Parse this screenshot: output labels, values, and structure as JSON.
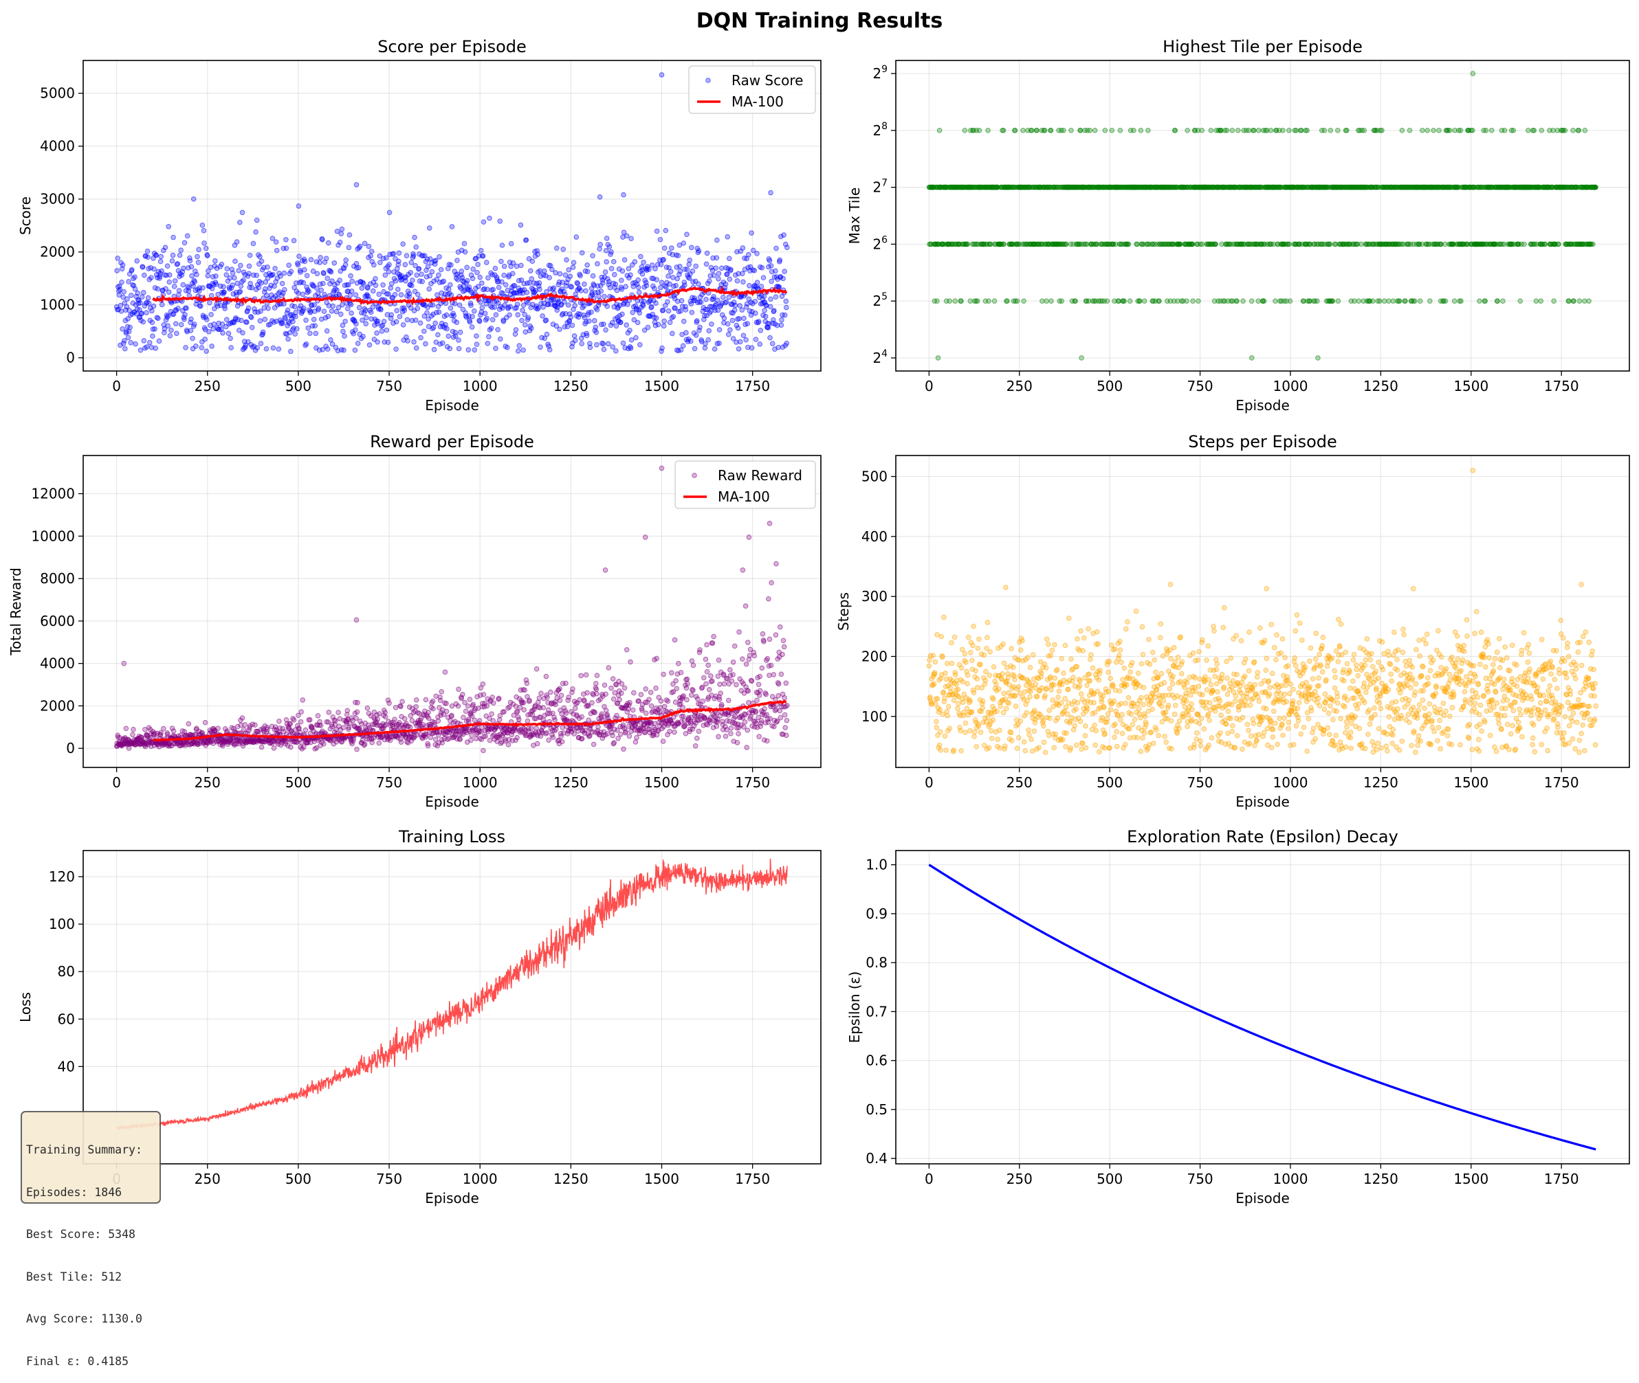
{
  "figure_title": "DQN Training Results",
  "colors": {
    "score": "#0000ff",
    "tile": "#008000",
    "reward": "#800080",
    "steps": "#ffa500",
    "ma": "#ff0000",
    "loss": "#ff4d4d",
    "epsilon": "#0000ff"
  },
  "summary": {
    "title": "Training Summary:",
    "episodes": "Episodes: 1846",
    "best_score": "Best Score: 5348",
    "best_tile": "Best Tile: 512",
    "avg_score": "Avg Score: 1130.0",
    "final_eps": "Final ε: 0.4185"
  },
  "chart_data": [
    {
      "type": "scatter",
      "title": "Score per Episode",
      "xlabel": "Episode",
      "ylabel": "Score",
      "xlim": [
        -92,
        1938
      ],
      "ylim": [
        -250,
        5620
      ],
      "xticks": [
        0,
        250,
        500,
        750,
        1000,
        1250,
        1500,
        1750
      ],
      "yticks": [
        0,
        1000,
        2000,
        3000,
        4000,
        5000
      ],
      "grid": true,
      "legend": "top-right",
      "series": [
        {
          "name": "Raw Score",
          "kind": "scatter",
          "color": "#0000ff",
          "n": 1846,
          "center": 1130,
          "spread": 540,
          "min": 120,
          "outliers": [
            [
              1500,
              5348
            ],
            [
              660,
              3270
            ],
            [
              212,
              3000
            ],
            [
              1800,
              3120
            ],
            [
              1395,
              3080
            ],
            [
              1330,
              3040
            ]
          ]
        },
        {
          "name": "MA-100",
          "kind": "line",
          "color": "#ff0000",
          "x": [
            100,
            200,
            300,
            400,
            500,
            600,
            700,
            800,
            900,
            1000,
            1100,
            1200,
            1300,
            1330,
            1400,
            1500,
            1550,
            1600,
            1700,
            1800,
            1845
          ],
          "y": [
            1100,
            1120,
            1100,
            1070,
            1090,
            1120,
            1050,
            1060,
            1100,
            1160,
            1100,
            1180,
            1080,
            1060,
            1120,
            1170,
            1280,
            1300,
            1220,
            1270,
            1240
          ]
        }
      ]
    },
    {
      "type": "scatter",
      "title": "Highest Tile per Episode",
      "xlabel": "Episode",
      "ylabel": "Max Tile",
      "xlim": [
        -92,
        1938
      ],
      "yscale": "log2",
      "ylim_exp": [
        3.77,
        9.23
      ],
      "xticks": [
        0,
        250,
        500,
        750,
        1000,
        1250,
        1500,
        1750
      ],
      "ytick_exponents": [
        4,
        5,
        6,
        7,
        8,
        9
      ],
      "grid": true,
      "series": [
        {
          "name": "",
          "kind": "levels",
          "color": "#008000",
          "n": 1846,
          "levels": [
            {
              "value": 128,
              "frac": 0.55
            },
            {
              "value": 64,
              "frac": 0.3
            },
            {
              "value": 256,
              "frac": 0.075
            },
            {
              "value": 32,
              "frac": 0.075
            }
          ],
          "points": [
            [
              1505,
              512
            ],
            [
              25,
              16
            ],
            [
              422,
              16
            ],
            [
              893,
              16
            ],
            [
              1076,
              16
            ]
          ]
        }
      ]
    },
    {
      "type": "scatter",
      "title": "Reward per Episode",
      "xlabel": "Episode",
      "ylabel": "Total Reward",
      "xlim": [
        -92,
        1938
      ],
      "ylim": [
        -900,
        13800
      ],
      "xticks": [
        0,
        250,
        500,
        750,
        1000,
        1250,
        1500,
        1750
      ],
      "yticks": [
        0,
        2000,
        4000,
        6000,
        8000,
        10000,
        12000
      ],
      "grid": true,
      "legend": "top-right",
      "series": [
        {
          "name": "Raw Reward",
          "kind": "scatter",
          "color": "#800080",
          "n": 1846,
          "trend": [
            [
              0,
              250
            ],
            [
              500,
              500
            ],
            [
              1000,
              1000
            ],
            [
              1500,
              1400
            ],
            [
              1845,
              2200
            ]
          ],
          "min": -200,
          "outliers": [
            [
              1500,
              13200
            ],
            [
              1797,
              10600
            ],
            [
              1740,
              9950
            ],
            [
              1455,
              9950
            ],
            [
              1345,
              8400
            ],
            [
              1723,
              8400
            ],
            [
              1815,
              8700
            ],
            [
              20,
              4000
            ],
            [
              660,
              6050
            ]
          ]
        },
        {
          "name": "MA-100",
          "kind": "line",
          "color": "#ff0000",
          "x": [
            100,
            200,
            300,
            400,
            500,
            600,
            700,
            800,
            900,
            1000,
            1100,
            1200,
            1300,
            1400,
            1500,
            1550,
            1600,
            1700,
            1800,
            1845
          ],
          "y": [
            380,
            450,
            650,
            560,
            520,
            600,
            700,
            820,
            960,
            1150,
            1120,
            1150,
            1130,
            1350,
            1450,
            1750,
            1800,
            1850,
            2150,
            2200
          ]
        }
      ]
    },
    {
      "type": "scatter",
      "title": "Steps per Episode",
      "xlabel": "Episode",
      "ylabel": "Steps",
      "xlim": [
        -92,
        1938
      ],
      "ylim": [
        15,
        535
      ],
      "xticks": [
        0,
        250,
        500,
        750,
        1000,
        1250,
        1500,
        1750
      ],
      "yticks": [
        100,
        200,
        300,
        400,
        500
      ],
      "grid": true,
      "series": [
        {
          "name": "",
          "kind": "scatter",
          "color": "#ffa500",
          "n": 1846,
          "center": 135,
          "spread": 50,
          "min": 40,
          "outliers": [
            [
              1505,
              510
            ],
            [
              668,
              320
            ],
            [
              1805,
              320
            ],
            [
              212,
              315
            ],
            [
              934,
              313
            ],
            [
              1340,
              313
            ]
          ]
        }
      ]
    },
    {
      "type": "line",
      "title": "Training Loss",
      "xlabel": "Episode",
      "ylabel": "Loss",
      "xlim": [
        -92,
        1938
      ],
      "ylim": [
        -1,
        131
      ],
      "xticks": [
        0,
        250,
        500,
        750,
        1000,
        1250,
        1500,
        1750
      ],
      "yticks": [
        40,
        60,
        80,
        100,
        120
      ],
      "grid": true,
      "series": [
        {
          "name": "",
          "kind": "line",
          "color": "#ff4d4d",
          "x": [
            0,
            250,
            500,
            600,
            750,
            900,
            1000,
            1100,
            1250,
            1400,
            1500,
            1550,
            1650,
            1750,
            1845
          ],
          "y": [
            14,
            18,
            28,
            35,
            45,
            60,
            68,
            80,
            95,
            112,
            120,
            122,
            118,
            119,
            121
          ],
          "noise": [
            0.3,
            0.5,
            1.0,
            1.5,
            2.5,
            2.5,
            2.5,
            3.0,
            3.5,
            3.5,
            3.0,
            2.5,
            2.0,
            2.0,
            2.0
          ]
        }
      ]
    },
    {
      "type": "line",
      "title": "Exploration Rate (Epsilon) Decay",
      "xlabel": "Episode",
      "ylabel": "Epsilon (ε)",
      "xlim": [
        -92,
        1938
      ],
      "ylim": [
        0.389,
        1.029
      ],
      "xticks": [
        0,
        250,
        500,
        750,
        1000,
        1250,
        1500,
        1750
      ],
      "yticks": [
        0.4,
        0.5,
        0.6,
        0.7,
        0.8,
        0.9,
        1.0
      ],
      "grid": true,
      "series": [
        {
          "name": "",
          "kind": "line",
          "color": "#0000ff",
          "x": [
            0,
            1845
          ],
          "y": [
            1.0,
            0.4185
          ],
          "curve": "exponential"
        }
      ]
    }
  ]
}
